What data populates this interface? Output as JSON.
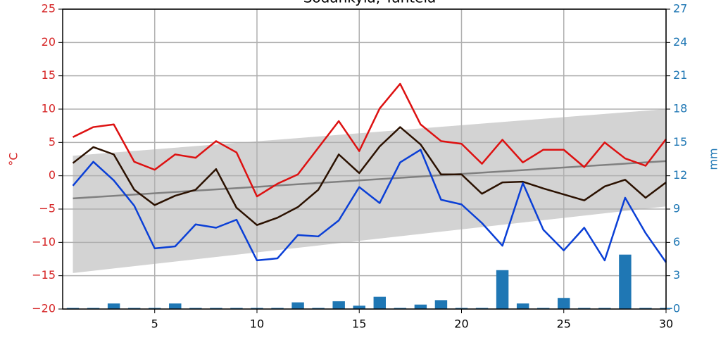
{
  "chart_data": {
    "type": "weather",
    "title": "Sodankylä, Tähtelä",
    "ylabel": "°C",
    "y2label": "mm",
    "x": [
      1,
      2,
      3,
      4,
      5,
      6,
      7,
      8,
      9,
      10,
      11,
      12,
      13,
      14,
      15,
      16,
      17,
      18,
      19,
      20,
      21,
      22,
      23,
      24,
      25,
      26,
      27,
      28,
      29,
      30
    ],
    "xlim": [
      0.5,
      30
    ],
    "xticks": [
      5,
      10,
      15,
      20,
      25,
      30
    ],
    "ylim": [
      -20,
      25
    ],
    "yticks": [
      {
        "value": -20,
        "label": "−20"
      },
      {
        "value": -15,
        "label": "−15"
      },
      {
        "value": -10,
        "label": "−10"
      },
      {
        "value": -5,
        "label": "−5"
      },
      0,
      5,
      10,
      15,
      20,
      25
    ],
    "y2lim": [
      0,
      27
    ],
    "y2ticks": [
      0,
      3,
      6,
      9,
      12,
      15,
      18,
      21,
      24,
      27
    ],
    "grid": true,
    "normal": {
      "x": [
        1,
        30
      ],
      "mean": [
        -3.4,
        2.2
      ],
      "upper": [
        3.0,
        10.0
      ],
      "lower": [
        -14.6,
        -4.6
      ],
      "color": "#808080",
      "band_color": "#d3d3d3"
    },
    "series": [
      {
        "color": "#dd1111",
        "values": [
          5.8,
          7.3,
          7.7,
          2.1,
          0.9,
          3.2,
          2.7,
          5.2,
          3.5,
          -3.1,
          -1.2,
          0.2,
          4.2,
          8.2,
          3.7,
          10.1,
          13.8,
          7.7,
          5.2,
          4.8,
          1.8,
          5.4,
          2.0,
          3.9,
          3.9,
          1.3,
          5.0,
          2.6,
          1.5,
          5.5
        ]
      },
      {
        "color": "#2b1100",
        "values": [
          1.9,
          4.3,
          3.2,
          -2.1,
          -4.4,
          -3.0,
          -2.1,
          1.0,
          -4.8,
          -7.4,
          -6.3,
          -4.7,
          -2.1,
          3.2,
          0.4,
          4.4,
          7.3,
          4.7,
          0.2,
          0.2,
          -2.7,
          -1.0,
          -0.9,
          -1.9,
          -2.8,
          -3.7,
          -1.6,
          -0.6,
          -3.3,
          -1.0
        ]
      },
      {
        "color": "#0a3fd6",
        "values": [
          -1.5,
          2.1,
          -0.7,
          -4.5,
          -10.9,
          -10.6,
          -7.3,
          -7.8,
          -6.6,
          -12.7,
          -12.4,
          -8.9,
          -9.1,
          -6.7,
          -1.7,
          -4.1,
          2.0,
          3.9,
          -3.6,
          -4.3,
          -7.1,
          -10.5,
          -1.1,
          -8.1,
          -11.2,
          -7.8,
          -12.7,
          -3.3,
          -8.6,
          -13.0
        ]
      },
      {
        "axis": "y2",
        "kind": "bar",
        "color": "#1f77b4",
        "values": [
          0.1,
          0.1,
          0.5,
          0.1,
          0.1,
          0.5,
          0.1,
          0.1,
          0.1,
          0.1,
          0.1,
          0.6,
          0.1,
          0.7,
          0.3,
          1.1,
          0.1,
          0.4,
          0.8,
          0.1,
          0.1,
          3.5,
          0.5,
          0.1,
          1.0,
          0.1,
          0.1,
          4.9,
          0.1,
          0.1
        ]
      }
    ]
  }
}
